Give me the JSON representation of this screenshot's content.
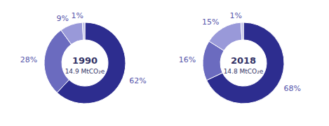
{
  "chart_data": [
    {
      "type": "pie",
      "title": "1990",
      "subtitle": "14.9 MtCO₂e",
      "values": [
        62,
        28,
        9,
        1
      ],
      "value_labels": [
        "62%",
        "28%",
        "9%",
        "1%"
      ],
      "colors": [
        "#2d2d8f",
        "#6b6bbf",
        "#9999d9",
        "#c0c0e8"
      ],
      "data_labels": true
    },
    {
      "type": "pie",
      "title": "2018",
      "subtitle": "14.8 MtCO₂e",
      "values": [
        68,
        16,
        15,
        1
      ],
      "value_labels": [
        "68%",
        "16%",
        "15%",
        "1%"
      ],
      "colors": [
        "#2d2d8f",
        "#6b6bbf",
        "#9999d9",
        "#c0c0e8"
      ],
      "data_labels": true
    }
  ]
}
